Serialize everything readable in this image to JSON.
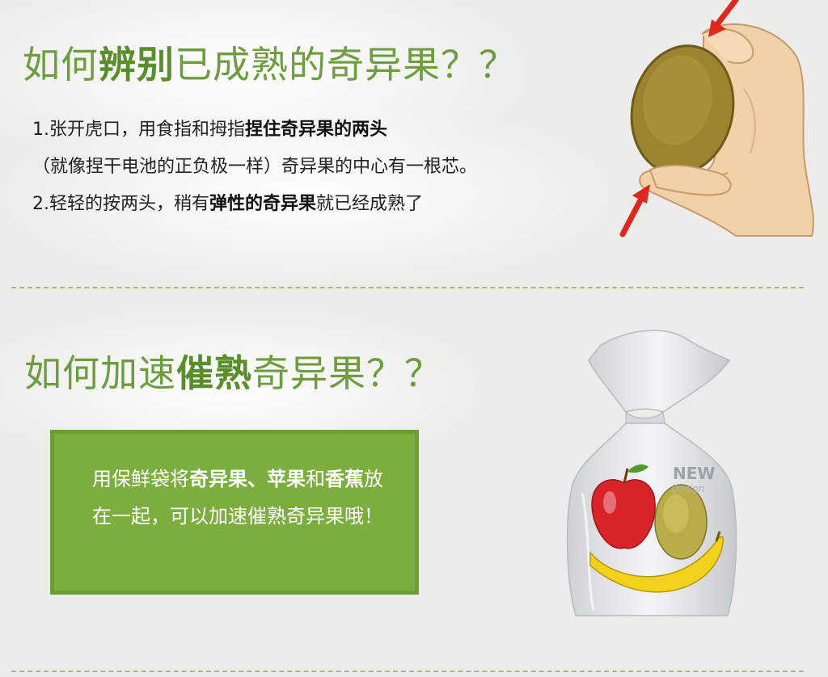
{
  "section1": {
    "title_pre": "如何",
    "title_bold": "辨别",
    "title_post": "已成熟的奇异果？？",
    "step1_pre": "1.张开虎口，用食指和拇指",
    "step1_bold": "捏住奇异果的两头",
    "step1_line2": "（就像捏干电池的正负极一样）奇异果的中心有一根芯。",
    "step2_pre": "2.轻轻的按两头，稍有",
    "step2_bold": "弹性的奇异果",
    "step2_post": "就已经成熟了"
  },
  "section2": {
    "title_pre": "如何加速",
    "title_bold": "催熟",
    "title_post": "奇异果？？",
    "tip_pre": "用保鲜袋将",
    "tip_bold1": "奇异果、苹果",
    "tip_mid": "和",
    "tip_bold2": "香蕉",
    "tip_post": "放在一起，可以加速催熟奇异果哦！",
    "bag_label": "NEW",
    "bag_sublabel": "Design"
  },
  "colors": {
    "accent_green": "#6e9d3f",
    "box_green": "#7bad3f",
    "arrow_red": "#e0271c"
  },
  "icons": {
    "hand_illustration": "hand-pinching-kiwi-icon",
    "bag_illustration": "fruit-bag-icon"
  }
}
